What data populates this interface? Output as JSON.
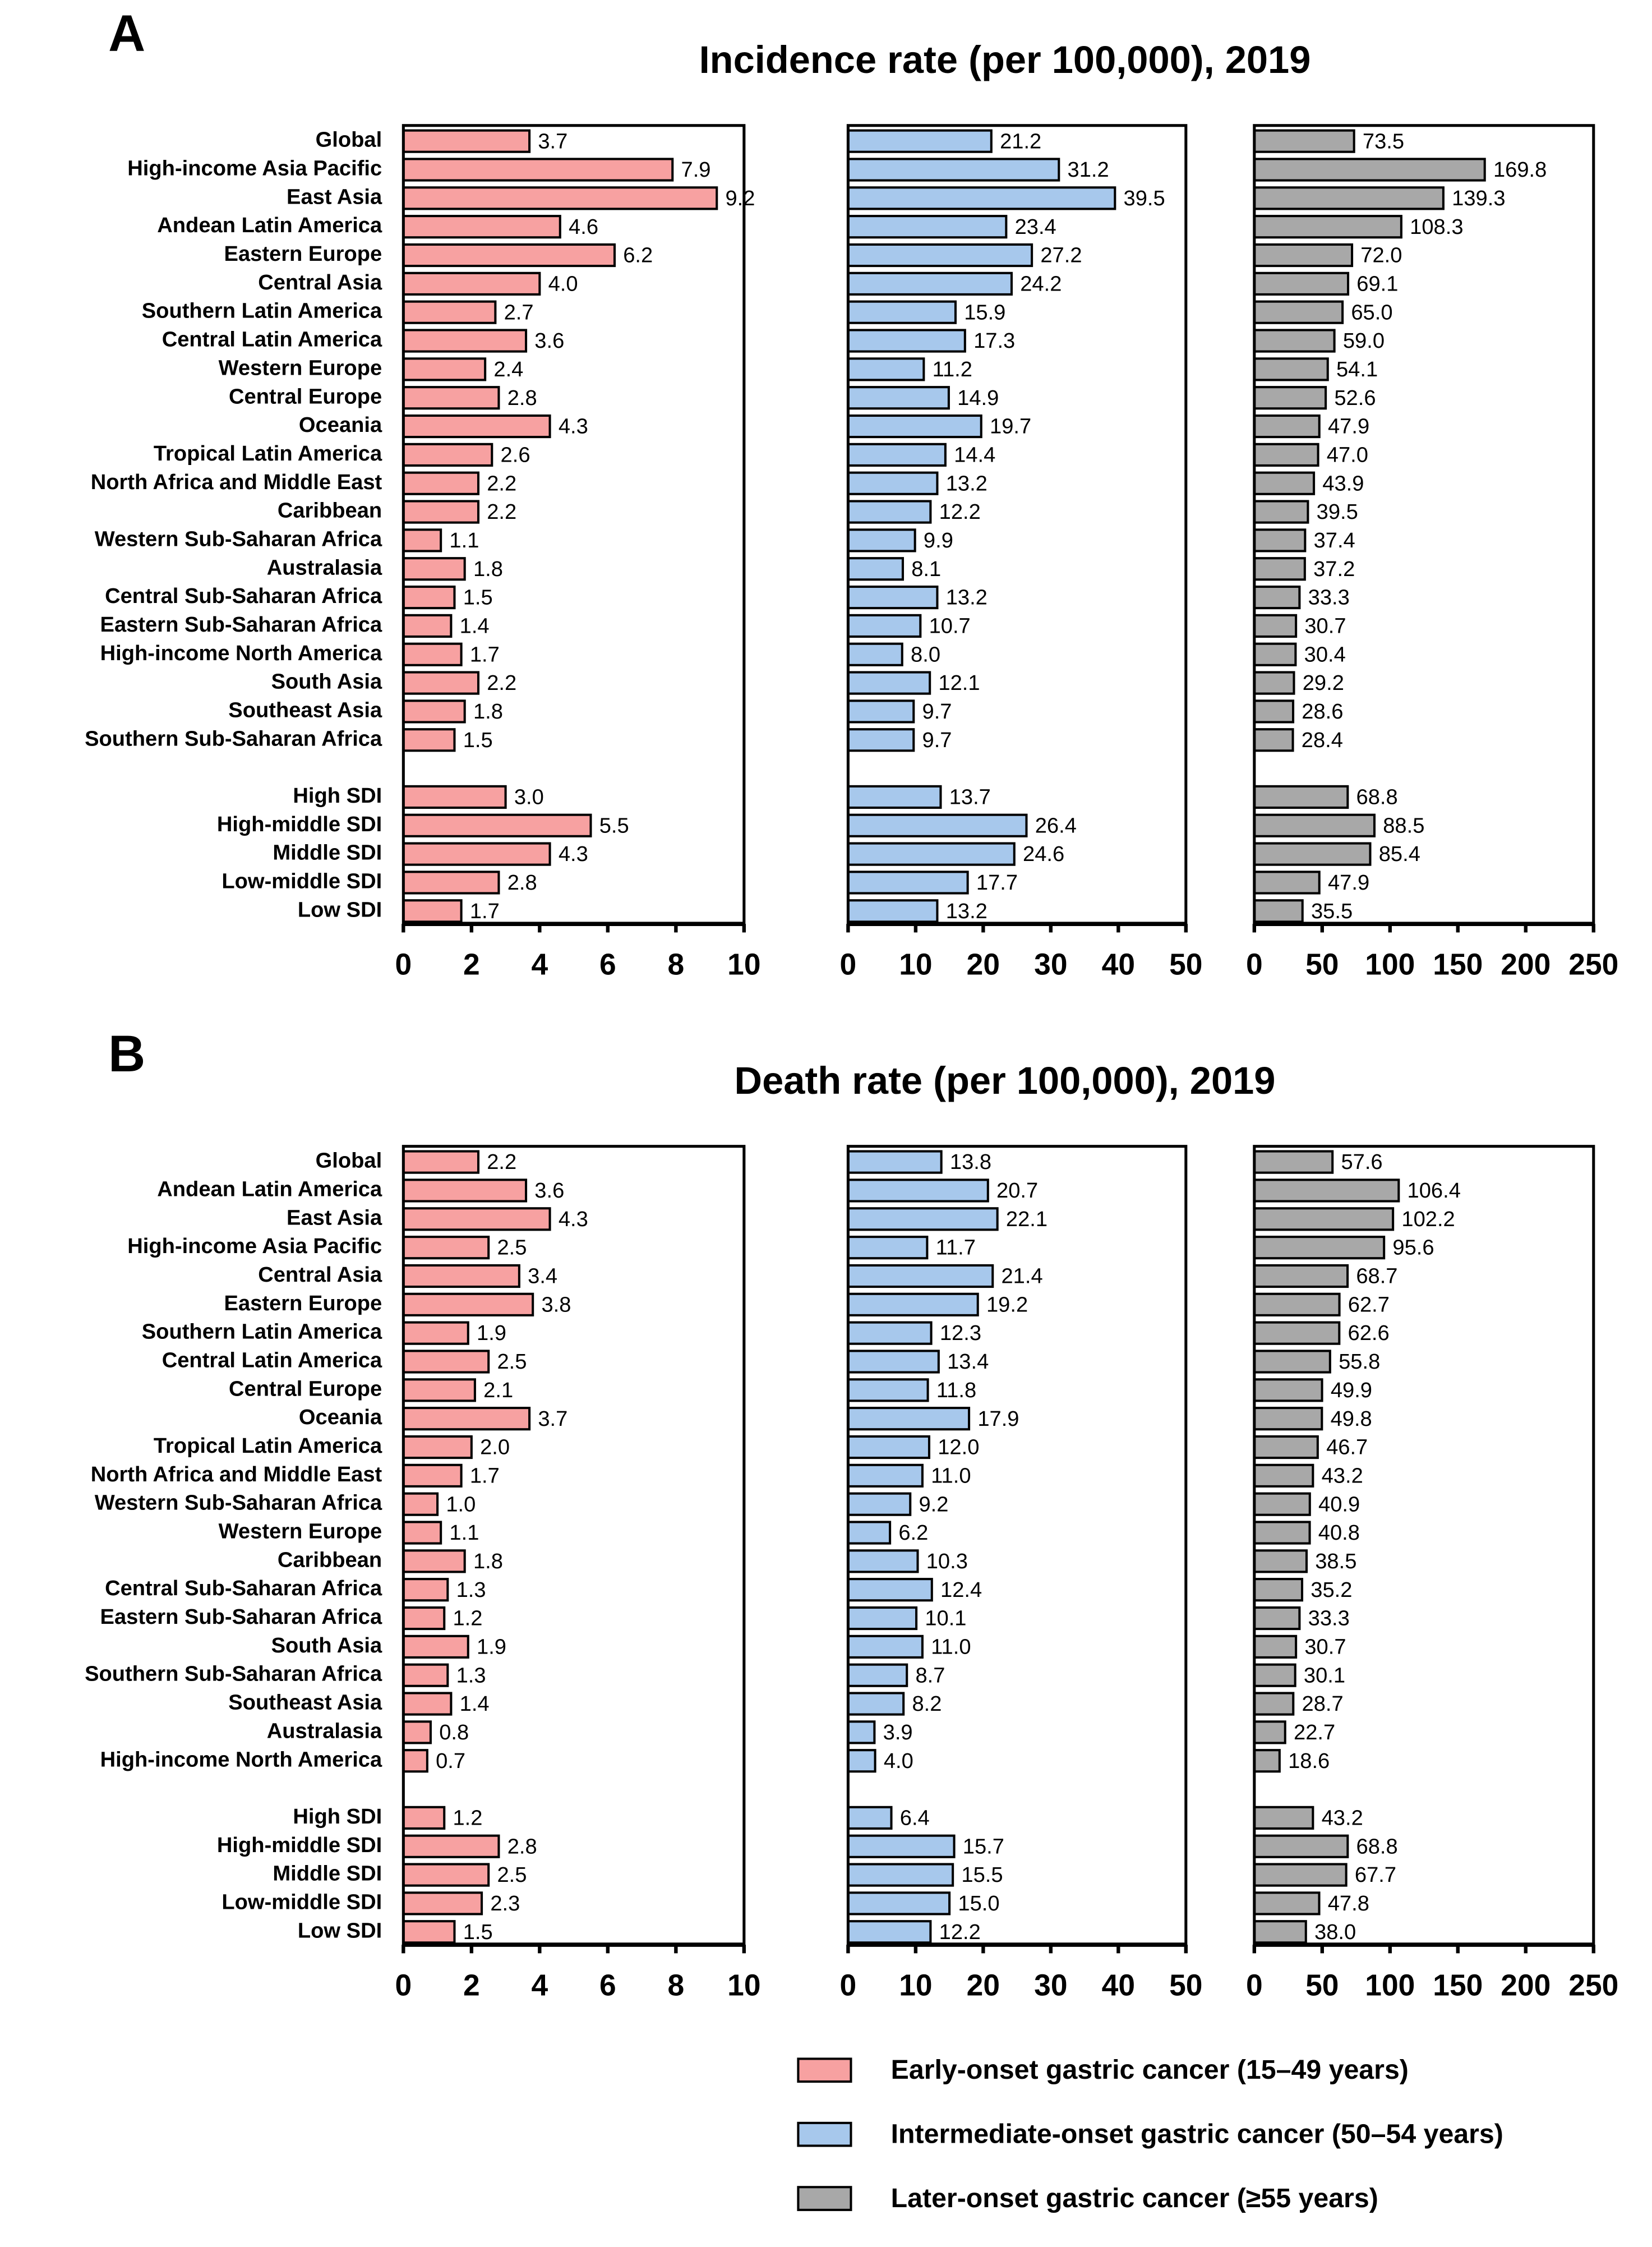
{
  "chart_data": [
    {
      "type": "bar",
      "orientation": "horizontal",
      "panel_label": "A",
      "title": "Incidence rate (per 100,000), 2019",
      "categories": [
        "Global",
        "High-income Asia Pacific",
        "East Asia",
        "Andean Latin America",
        "Eastern Europe",
        "Central Asia",
        "Southern Latin America",
        "Central Latin America",
        "Western Europe",
        "Central Europe",
        "Oceania",
        "Tropical Latin America",
        "North Africa and Middle East",
        "Caribbean",
        "Western Sub-Saharan Africa",
        "Australasia",
        "Central Sub-Saharan Africa",
        "Eastern Sub-Saharan Africa",
        "High-income North America",
        "South Asia",
        "Southeast Asia",
        "Southern Sub-Saharan Africa",
        null,
        "High SDI",
        "High-middle SDI",
        "Middle SDI",
        "Low-middle SDI",
        "Low SDI"
      ],
      "series": [
        {
          "name": "Early-onset gastric cancer (15–49 years)",
          "color": "#f7a1a1",
          "xlim": [
            0,
            10
          ],
          "xticks": [
            0,
            2,
            4,
            6,
            8,
            10
          ],
          "values": [
            3.7,
            7.9,
            9.2,
            4.6,
            6.2,
            4.0,
            2.7,
            3.6,
            2.4,
            2.8,
            4.3,
            2.6,
            2.2,
            2.2,
            1.1,
            1.8,
            1.5,
            1.4,
            1.7,
            2.2,
            1.8,
            1.5,
            null,
            3.0,
            5.5,
            4.3,
            2.8,
            1.7
          ],
          "value_labels": [
            "3.7",
            "7.9",
            "9.2",
            "4.6",
            "6.2",
            "4.0",
            "2.7",
            "3.6",
            "2.4",
            "2.8",
            "4.3",
            "2.6",
            "2.2",
            "2.2",
            "1.1",
            "1.8",
            "1.5",
            "1.4",
            "1.7",
            "2.2",
            "1.8",
            "1.5",
            null,
            "3.0",
            "5.5",
            "4.3",
            "2.8",
            "1.7"
          ]
        },
        {
          "name": "Intermediate-onset gastric cancer (50–54 years)",
          "color": "#a7c8ec",
          "xlim": [
            0,
            50
          ],
          "xticks": [
            0,
            10,
            20,
            30,
            40,
            50
          ],
          "values": [
            21.2,
            31.2,
            39.5,
            23.4,
            27.2,
            24.2,
            15.9,
            17.3,
            11.2,
            14.9,
            19.7,
            14.4,
            13.2,
            12.2,
            9.9,
            8.1,
            13.2,
            10.7,
            8.0,
            12.1,
            9.7,
            9.7,
            null,
            13.7,
            26.4,
            24.6,
            17.7,
            13.2
          ],
          "value_labels": [
            "21.2",
            "31.2",
            "39.5",
            "23.4",
            "27.2",
            "24.2",
            "15.9",
            "17.3",
            "11.2",
            "14.9",
            "19.7",
            "14.4",
            "13.2",
            "12.2",
            "9.9",
            "8.1",
            "13.2",
            "10.7",
            "8.0",
            "12.1",
            "9.7",
            "9.7",
            null,
            "13.7",
            "26.4",
            "24.6",
            "17.7",
            "13.2"
          ]
        },
        {
          "name": "Later-onset gastric cancer (≥55 years)",
          "color": "#a8a8a8",
          "xlim": [
            0,
            250
          ],
          "xticks": [
            0,
            50,
            100,
            150,
            200,
            250
          ],
          "values": [
            73.5,
            169.8,
            139.3,
            108.3,
            72.0,
            69.1,
            65.0,
            59.0,
            54.1,
            52.6,
            47.9,
            47.0,
            43.9,
            39.5,
            37.4,
            37.2,
            33.3,
            30.7,
            30.4,
            29.2,
            28.6,
            28.4,
            null,
            68.8,
            88.5,
            85.4,
            47.9,
            35.5
          ],
          "value_labels": [
            "73.5",
            "169.8",
            "139.3",
            "108.3",
            "72.0",
            "69.1",
            "65.0",
            "59.0",
            "54.1",
            "52.6",
            "47.9",
            "47.0",
            "43.9",
            "39.5",
            "37.4",
            "37.2",
            "33.3",
            "30.7",
            "30.4",
            "29.2",
            "28.6",
            "28.4",
            null,
            "68.8",
            "88.5",
            "85.4",
            "47.9",
            "35.5"
          ]
        }
      ]
    },
    {
      "type": "bar",
      "orientation": "horizontal",
      "panel_label": "B",
      "title": "Death rate (per 100,000), 2019",
      "categories": [
        "Global",
        "Andean Latin America",
        "East Asia",
        "High-income Asia Pacific",
        "Central Asia",
        "Eastern Europe",
        "Southern Latin America",
        "Central Latin America",
        "Central Europe",
        "Oceania",
        "Tropical Latin America",
        "North Africa and Middle East",
        "Western Sub-Saharan Africa",
        "Western Europe",
        "Caribbean",
        "Central Sub-Saharan Africa",
        "Eastern Sub-Saharan Africa",
        "South Asia",
        "Southern Sub-Saharan Africa",
        "Southeast Asia",
        "Australasia",
        "High-income North America",
        null,
        "High SDI",
        "High-middle SDI",
        "Middle SDI",
        "Low-middle SDI",
        "Low SDI"
      ],
      "series": [
        {
          "color": "#f7a1a1",
          "xlim": [
            0,
            10
          ],
          "xticks": [
            0,
            2,
            4,
            6,
            8,
            10
          ],
          "values": [
            2.2,
            3.6,
            4.3,
            2.5,
            3.4,
            3.8,
            1.9,
            2.5,
            2.1,
            3.7,
            2.0,
            1.7,
            1.0,
            1.1,
            1.8,
            1.3,
            1.2,
            1.9,
            1.3,
            1.4,
            0.8,
            0.7,
            null,
            1.2,
            2.8,
            2.5,
            2.3,
            1.5
          ],
          "value_labels": [
            "2.2",
            "3.6",
            "4.3",
            "2.5",
            "3.4",
            "3.8",
            "1.9",
            "2.5",
            "2.1",
            "3.7",
            "2.0",
            "1.7",
            "1.0",
            "1.1",
            "1.8",
            "1.3",
            "1.2",
            "1.9",
            "1.3",
            "1.4",
            "0.8",
            "0.7",
            null,
            "1.2",
            "2.8",
            "2.5",
            "2.3",
            "1.5"
          ]
        },
        {
          "color": "#a7c8ec",
          "xlim": [
            0,
            50
          ],
          "xticks": [
            0,
            10,
            20,
            30,
            40,
            50
          ],
          "values": [
            13.8,
            20.7,
            22.1,
            11.7,
            21.4,
            19.2,
            12.3,
            13.4,
            11.8,
            17.9,
            12.0,
            11.0,
            9.2,
            6.2,
            10.3,
            12.4,
            10.1,
            11.0,
            8.7,
            8.2,
            3.9,
            4.0,
            null,
            6.4,
            15.7,
            15.5,
            15.0,
            12.2
          ],
          "value_labels": [
            "13.8",
            "20.7",
            "22.1",
            "11.7",
            "21.4",
            "19.2",
            "12.3",
            "13.4",
            "11.8",
            "17.9",
            "12.0",
            "11.0",
            "9.2",
            "6.2",
            "10.3",
            "12.4",
            "10.1",
            "11.0",
            "8.7",
            "8.2",
            "3.9",
            "4.0",
            null,
            "6.4",
            "15.7",
            "15.5",
            "15.0",
            "12.2"
          ]
        },
        {
          "color": "#a8a8a8",
          "xlim": [
            0,
            250
          ],
          "xticks": [
            0,
            50,
            100,
            150,
            200,
            250
          ],
          "values": [
            57.6,
            106.4,
            102.2,
            95.6,
            68.7,
            62.7,
            62.6,
            55.8,
            49.9,
            49.8,
            46.7,
            43.2,
            40.9,
            40.8,
            38.5,
            35.2,
            33.3,
            30.7,
            30.1,
            28.7,
            22.7,
            18.6,
            null,
            43.2,
            68.8,
            67.7,
            47.8,
            38.0
          ],
          "value_labels": [
            "57.6",
            "106.4",
            "102.2",
            "95.6",
            "68.7",
            "62.7",
            "62.6",
            "55.8",
            "49.9",
            "49.8",
            "46.7",
            "43.2",
            "40.9",
            "40.8",
            "38.5",
            "35.2",
            "33.3",
            "30.7",
            "30.1",
            "28.7",
            "22.7",
            "18.6",
            null,
            "43.2",
            "68.8",
            "67.7",
            "47.8",
            "38.0"
          ]
        }
      ]
    }
  ]
}
